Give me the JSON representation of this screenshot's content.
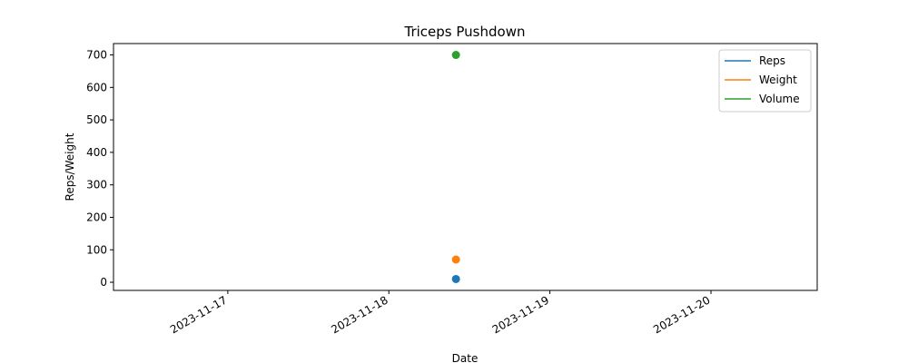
{
  "chart_data": {
    "type": "scatter",
    "title": "Triceps Pushdown",
    "xlabel": "Date",
    "ylabel": "Reps/Weight",
    "x_ticks": [
      "2023-11-17",
      "2023-11-18",
      "2023-11-19",
      "2023-11-20"
    ],
    "xlim": [
      "2023-11-16T06:58",
      "2023-11-20T15:50"
    ],
    "y_ticks": [
      0,
      100,
      200,
      300,
      400,
      500,
      600,
      700
    ],
    "ylim": [
      -25,
      735
    ],
    "legend_position": "top-right",
    "series": [
      {
        "name": "Reps",
        "color": "#1f77b4",
        "points": [
          {
            "x": "2023-11-18T10:00",
            "y": 10
          }
        ]
      },
      {
        "name": "Weight",
        "color": "#ff7f0e",
        "points": [
          {
            "x": "2023-11-18T10:00",
            "y": 70
          }
        ]
      },
      {
        "name": "Volume",
        "color": "#2ca02c",
        "points": [
          {
            "x": "2023-11-18T10:00",
            "y": 700
          }
        ]
      }
    ]
  }
}
